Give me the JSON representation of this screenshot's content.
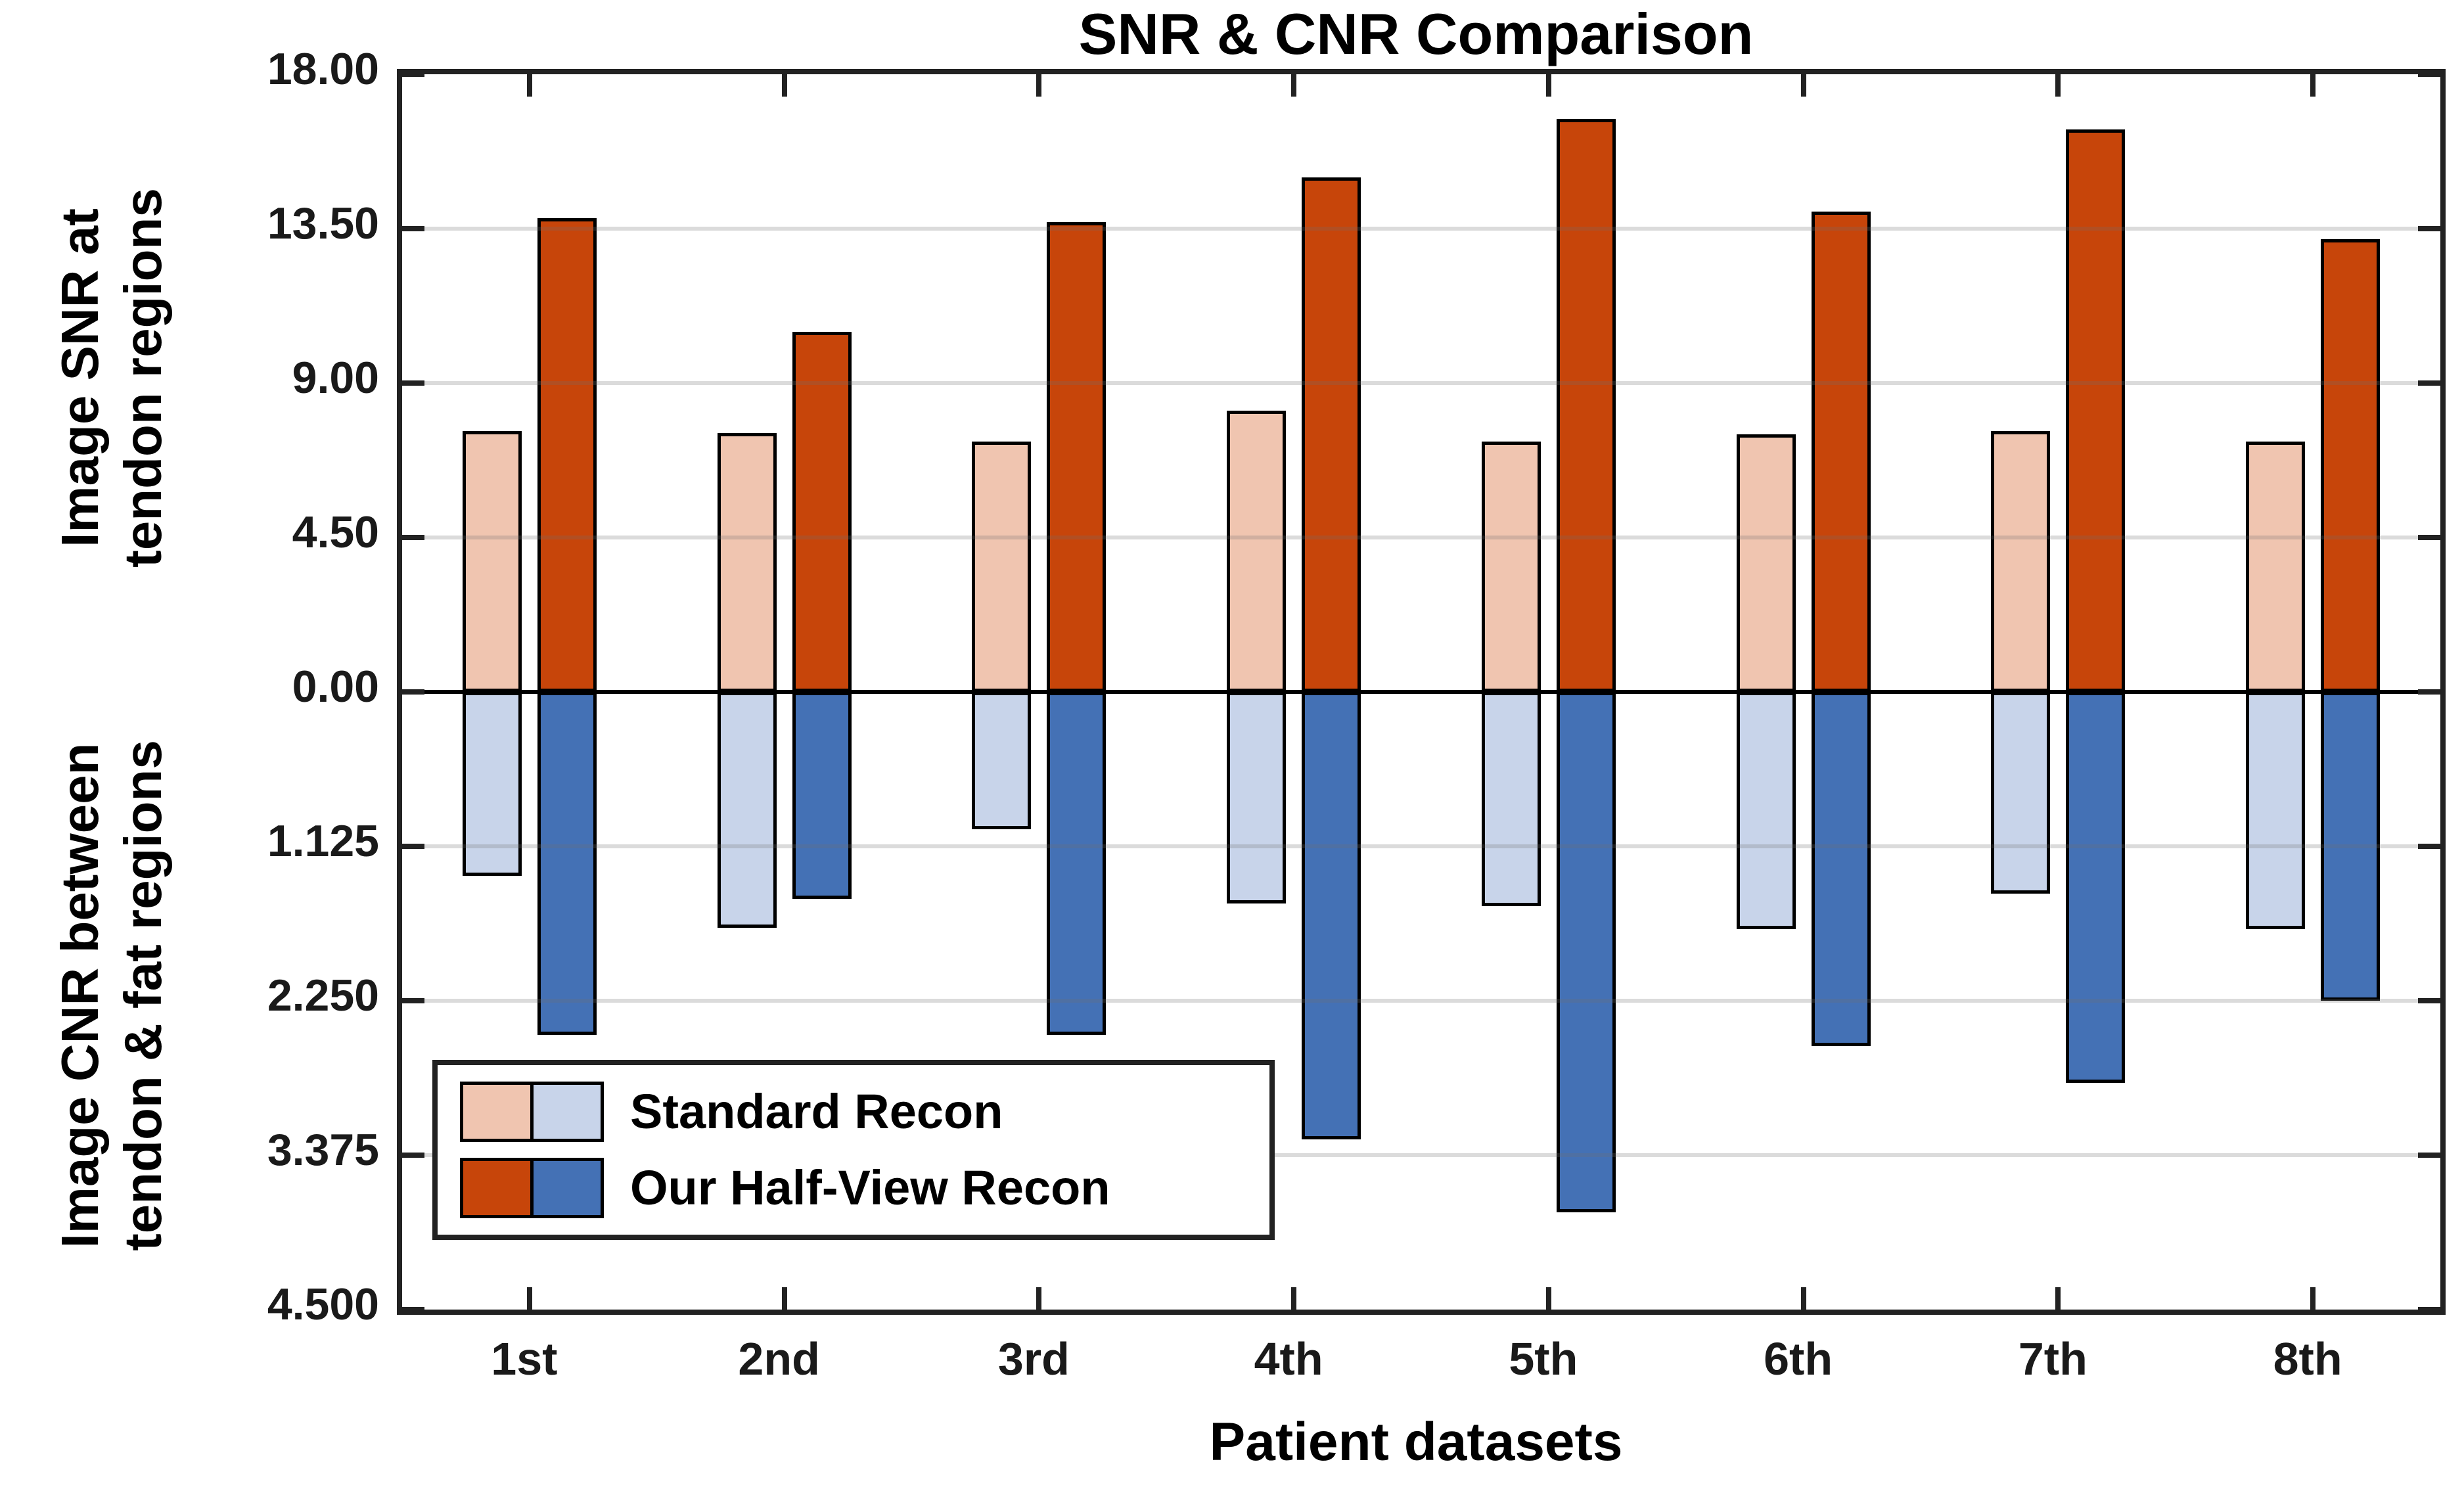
{
  "chart_data": {
    "type": "bar",
    "title": "SNR & CNR Comparison",
    "xlabel": "Patient datasets",
    "categories": [
      "1st",
      "2nd",
      "3rd",
      "4th",
      "5th",
      "6th",
      "7th",
      "8th"
    ],
    "top_axis": {
      "label_lines": [
        "Image SNR at",
        "tendon regions"
      ],
      "range": [
        0,
        18
      ],
      "direction": "up",
      "ticks": [
        {
          "value": 18.0,
          "label": "18.00"
        },
        {
          "value": 13.5,
          "label": "13.50"
        },
        {
          "value": 9.0,
          "label": "9.00"
        },
        {
          "value": 4.5,
          "label": "4.50"
        },
        {
          "value": 0.0,
          "label": "0.00"
        }
      ]
    },
    "bottom_axis": {
      "label_lines": [
        "Image CNR between",
        "tendon & fat regions"
      ],
      "range": [
        0,
        4.5
      ],
      "direction": "down",
      "ticks": [
        {
          "value": 1.125,
          "label": "1.125"
        },
        {
          "value": 2.25,
          "label": "2.250"
        },
        {
          "value": 3.375,
          "label": "3.375"
        },
        {
          "value": 4.5,
          "label": "4.500"
        }
      ]
    },
    "series": [
      {
        "name": "Standard Recon",
        "colors": {
          "snr": "#F0C5B0",
          "cnr": "#C8D4EA"
        },
        "snr": [
          7.6,
          7.55,
          7.3,
          8.2,
          7.3,
          7.5,
          7.6,
          7.3
        ],
        "cnr": [
          1.34,
          1.72,
          1.0,
          1.54,
          1.56,
          1.73,
          1.47,
          1.73
        ]
      },
      {
        "name": "Our Half-View Recon",
        "colors": {
          "snr": "#C7450A",
          "cnr": "#4471B5"
        },
        "snr": [
          13.8,
          10.5,
          13.7,
          15.0,
          16.7,
          14.0,
          16.4,
          13.2
        ],
        "cnr": [
          2.5,
          1.51,
          2.5,
          3.26,
          3.79,
          2.58,
          2.85,
          2.25
        ]
      }
    ],
    "legend": {
      "position": "inside-lower-left",
      "entries": [
        "Standard Recon",
        "Our Half-View Recon"
      ]
    },
    "grid": "on",
    "colors": {
      "axis": "#222222",
      "grid": "#E2E2E2",
      "zero_line": "#000000",
      "background": "#FFFFFF",
      "text": "#1A1A1A"
    }
  }
}
